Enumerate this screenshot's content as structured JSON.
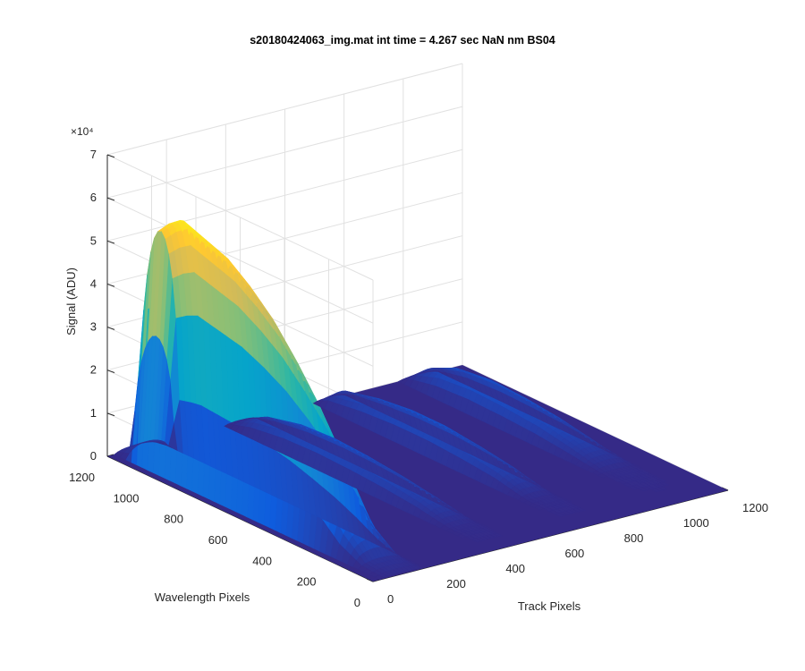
{
  "chart_data": {
    "type": "surface",
    "title": "s20180424063_img.mat int time = 4.267 sec  NaN nm BS04",
    "xlabel": "Track Pixels",
    "ylabel": "Wavelength Pixels",
    "zlabel": "Signal (ADU)",
    "z_exponent_label": "×10⁴",
    "xlim": [
      0,
      1200
    ],
    "ylim": [
      0,
      1200
    ],
    "zlim": [
      0,
      7
    ],
    "z_unit_multiplier": 10000,
    "x_ticks": [
      "0",
      "200",
      "400",
      "600",
      "800",
      "1000",
      "1200"
    ],
    "y_ticks": [
      "0",
      "200",
      "400",
      "600",
      "800",
      "1000",
      "1200"
    ],
    "z_ticks": [
      "0",
      "1",
      "2",
      "3",
      "4",
      "5",
      "6",
      "7"
    ],
    "grid": true,
    "colormap": "parula",
    "colormap_colors": [
      "#352a87",
      "#0f5cdd",
      "#1481d6",
      "#06a4ca",
      "#2eb7a4",
      "#87bf77",
      "#d1bb59",
      "#fec832",
      "#f9fb0e"
    ],
    "series": [
      {
        "track_center": 100,
        "track_halfwidth": 70,
        "peak_wavelength": 1000,
        "ridge": [
          [
            0,
            0.05
          ],
          [
            100,
            0.15
          ],
          [
            200,
            0.8
          ],
          [
            300,
            2.0
          ],
          [
            400,
            3.0
          ],
          [
            500,
            3.8
          ],
          [
            600,
            4.5
          ],
          [
            700,
            5.0
          ],
          [
            800,
            5.4
          ],
          [
            900,
            5.6
          ],
          [
            1000,
            5.8
          ],
          [
            1050,
            5.6
          ],
          [
            1100,
            5.3
          ],
          [
            1150,
            0.3
          ],
          [
            1200,
            0.1
          ]
        ]
      },
      {
        "track_center": 450,
        "track_halfwidth": 50,
        "ridge": [
          [
            0,
            0.0
          ],
          [
            200,
            0.05
          ],
          [
            350,
            0.3
          ],
          [
            500,
            0.45
          ],
          [
            650,
            0.55
          ],
          [
            800,
            0.6
          ],
          [
            950,
            0.55
          ],
          [
            1100,
            0.35
          ],
          [
            1200,
            0.05
          ]
        ]
      },
      {
        "track_center": 750,
        "track_halfwidth": 50,
        "ridge": [
          [
            0,
            0.0
          ],
          [
            250,
            0.05
          ],
          [
            400,
            0.35
          ],
          [
            550,
            0.5
          ],
          [
            700,
            0.6
          ],
          [
            850,
            0.6
          ],
          [
            1000,
            0.5
          ],
          [
            1150,
            0.3
          ],
          [
            1200,
            0.05
          ]
        ]
      },
      {
        "track_center": 1050,
        "track_halfwidth": 60,
        "ridge": [
          [
            0,
            0.0
          ],
          [
            300,
            0.05
          ],
          [
            450,
            0.3
          ],
          [
            600,
            0.5
          ],
          [
            750,
            0.6
          ],
          [
            900,
            0.65
          ],
          [
            1050,
            0.55
          ],
          [
            1150,
            0.3
          ],
          [
            1200,
            0.05
          ]
        ]
      }
    ]
  }
}
